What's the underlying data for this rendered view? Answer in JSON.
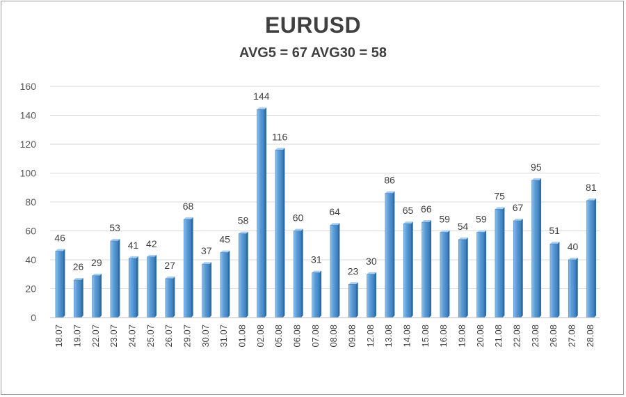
{
  "chart_data": {
    "type": "bar",
    "title": "EURUSD",
    "subtitle": "AVG5 = 67 AVG30 = 58",
    "xlabel": "",
    "ylabel": "",
    "ylim": [
      0,
      160
    ],
    "yticks": [
      0,
      20,
      40,
      60,
      80,
      100,
      120,
      140,
      160
    ],
    "grid": true,
    "legend": "none",
    "bar_color": "#5b9bd5",
    "bar_dark_color": "#2e6da4",
    "categories": [
      "18.07",
      "19.07",
      "22.07",
      "23.07",
      "24.07",
      "25.07",
      "26.07",
      "29.07",
      "30.07",
      "31.07",
      "01.08",
      "02.08",
      "05.08",
      "06.08",
      "07.08",
      "08.08",
      "09.08",
      "12.08",
      "13.08",
      "14.08",
      "15.08",
      "16.08",
      "19.08",
      "20.08",
      "21.08",
      "22.08",
      "23.08",
      "26.08",
      "27.08",
      "28.08"
    ],
    "values": [
      46,
      26,
      29,
      53,
      41,
      42,
      27,
      68,
      37,
      45,
      58,
      144,
      116,
      60,
      31,
      64,
      23,
      30,
      86,
      65,
      66,
      59,
      54,
      59,
      75,
      67,
      95,
      51,
      40,
      81
    ]
  }
}
